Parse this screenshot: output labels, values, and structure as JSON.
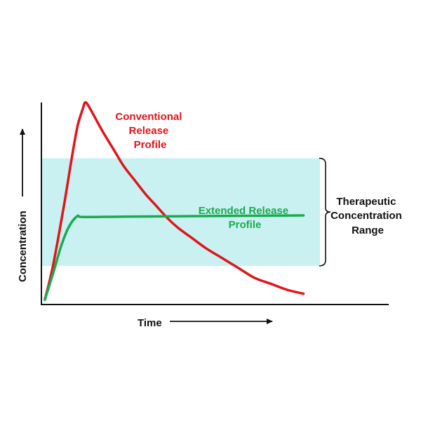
{
  "colors": {
    "conventional": "#e0151b",
    "extended": "#1aab4e",
    "band": "#c9f1f1",
    "axis": "#111111"
  },
  "chart_data": {
    "type": "line",
    "xlabel": "Time",
    "ylabel": "Concentration",
    "xlim": [
      0,
      100
    ],
    "ylim": [
      0,
      100
    ],
    "therapeutic_range": {
      "low": 18,
      "high": 72,
      "label_lines": [
        "Therapeutic",
        "Concentration",
        "Range"
      ]
    },
    "series": [
      {
        "key": "conventional",
        "label_lines": [
          "Conventional",
          "Release",
          "Profile"
        ],
        "points": [
          [
            1,
            1
          ],
          [
            4,
            18
          ],
          [
            8,
            48
          ],
          [
            11,
            73
          ],
          [
            13,
            88
          ],
          [
            15,
            97
          ],
          [
            16,
            100
          ],
          [
            18,
            96
          ],
          [
            22,
            86
          ],
          [
            26,
            77
          ],
          [
            30,
            68
          ],
          [
            34,
            61
          ],
          [
            38,
            54
          ],
          [
            42,
            48
          ],
          [
            46,
            42
          ],
          [
            50,
            37
          ],
          [
            55,
            32
          ],
          [
            60,
            27
          ],
          [
            66,
            22
          ],
          [
            72,
            17
          ],
          [
            78,
            12
          ],
          [
            84,
            9
          ],
          [
            90,
            6
          ],
          [
            96,
            4
          ]
        ]
      },
      {
        "key": "extended",
        "label_lines": [
          "Extended Release",
          "Profile"
        ],
        "points": [
          [
            1,
            1
          ],
          [
            4,
            14
          ],
          [
            7,
            28
          ],
          [
            10,
            38
          ],
          [
            13,
            43
          ],
          [
            15,
            42.5
          ],
          [
            30,
            42.7
          ],
          [
            50,
            42.9
          ],
          [
            70,
            43.1
          ],
          [
            85,
            43.2
          ],
          [
            96,
            43.3
          ]
        ]
      }
    ]
  }
}
